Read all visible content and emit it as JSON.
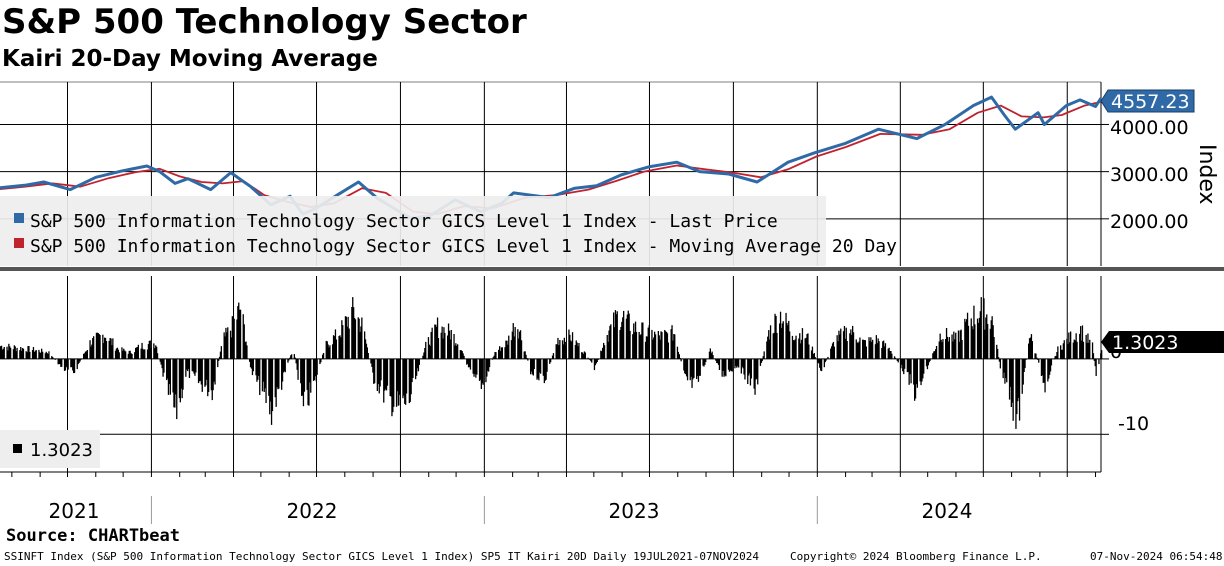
{
  "header": {
    "title": "S&P 500 Technology Sector",
    "subtitle": "Kairi 20-Day Moving Average"
  },
  "footer": {
    "source": "Source: CHARTbeat",
    "description": "SSINFT Index (S&P 500 Information Technology Sector GICS Level 1 Index) SP5 IT Kairi 20D  Daily 19JUL2021-07NOV2024",
    "copyright": "Copyright© 2024 Bloomberg Finance L.P.",
    "timestamp": "07-Nov-2024 06:54:48"
  },
  "colors": {
    "last_price": "#2f6aa6",
    "moving_average": "#c0222e",
    "kairi": "#000000",
    "legend_bg": "#eeeeee"
  },
  "chart_data": [
    {
      "type": "line",
      "ylabel": "Index",
      "ylim": [
        1000,
        4900
      ],
      "yticks": [
        {
          "value": 2000,
          "label": "2000.00"
        },
        {
          "value": 3000,
          "label": "3000.00"
        },
        {
          "value": 4000,
          "label": "4000.00"
        }
      ],
      "xlabels": [
        "2021",
        "2022",
        "2023",
        "2024"
      ],
      "xlim": [
        "2021-07-19",
        "2024-11-07"
      ],
      "grid": true,
      "legend": "bottom-left",
      "last_value_label": "4557.23",
      "series": [
        {
          "name": "S&P 500 Information Technology Sector GICS Level 1 Index - Last Price",
          "color": "#2f6aa6",
          "points": [
            [
              "2021-07-19",
              2660
            ],
            [
              "2021-08-15",
              2710
            ],
            [
              "2021-09-05",
              2780
            ],
            [
              "2021-10-04",
              2620
            ],
            [
              "2021-11-01",
              2880
            ],
            [
              "2021-12-01",
              3020
            ],
            [
              "2021-12-27",
              3120
            ],
            [
              "2022-01-10",
              3000
            ],
            [
              "2022-01-27",
              2750
            ],
            [
              "2022-02-10",
              2850
            ],
            [
              "2022-03-07",
              2620
            ],
            [
              "2022-03-29",
              2980
            ],
            [
              "2022-04-20",
              2680
            ],
            [
              "2022-05-12",
              2300
            ],
            [
              "2022-06-02",
              2480
            ],
            [
              "2022-06-16",
              2100
            ],
            [
              "2022-07-01",
              2230
            ],
            [
              "2022-07-25",
              2520
            ],
            [
              "2022-08-16",
              2780
            ],
            [
              "2022-09-06",
              2430
            ],
            [
              "2022-09-30",
              2150
            ],
            [
              "2022-10-13",
              2010
            ],
            [
              "2022-11-03",
              2070
            ],
            [
              "2022-11-30",
              2400
            ],
            [
              "2022-12-28",
              2150
            ],
            [
              "2023-01-20",
              2330
            ],
            [
              "2023-02-02",
              2550
            ],
            [
              "2023-03-13",
              2450
            ],
            [
              "2023-04-10",
              2650
            ],
            [
              "2023-05-04",
              2700
            ],
            [
              "2023-05-31",
              2930
            ],
            [
              "2023-06-30",
              3100
            ],
            [
              "2023-07-31",
              3200
            ],
            [
              "2023-08-25",
              3000
            ],
            [
              "2023-09-26",
              2950
            ],
            [
              "2023-10-27",
              2780
            ],
            [
              "2023-11-30",
              3200
            ],
            [
              "2023-12-29",
              3400
            ],
            [
              "2024-02-01",
              3600
            ],
            [
              "2024-03-08",
              3900
            ],
            [
              "2024-04-19",
              3700
            ],
            [
              "2024-05-20",
              4000
            ],
            [
              "2024-06-20",
              4400
            ],
            [
              "2024-07-10",
              4580
            ],
            [
              "2024-07-24",
              4200
            ],
            [
              "2024-08-05",
              3900
            ],
            [
              "2024-08-30",
              4250
            ],
            [
              "2024-09-06",
              4000
            ],
            [
              "2024-09-30",
              4400
            ],
            [
              "2024-10-15",
              4520
            ],
            [
              "2024-11-01",
              4380
            ],
            [
              "2024-11-07",
              4557
            ]
          ]
        },
        {
          "name": "S&P 500 Information Technology Sector GICS Level 1 Index - Moving Average 20 Day",
          "color": "#c0222e",
          "points": [
            [
              "2021-07-19",
              2630
            ],
            [
              "2021-08-15",
              2680
            ],
            [
              "2021-09-15",
              2750
            ],
            [
              "2021-10-15",
              2680
            ],
            [
              "2021-11-15",
              2860
            ],
            [
              "2021-12-15",
              2990
            ],
            [
              "2022-01-10",
              3060
            ],
            [
              "2022-02-01",
              2900
            ],
            [
              "2022-02-25",
              2780
            ],
            [
              "2022-03-20",
              2750
            ],
            [
              "2022-04-12",
              2800
            ],
            [
              "2022-05-05",
              2500
            ],
            [
              "2022-06-01",
              2350
            ],
            [
              "2022-06-25",
              2250
            ],
            [
              "2022-07-20",
              2330
            ],
            [
              "2022-08-20",
              2650
            ],
            [
              "2022-09-15",
              2550
            ],
            [
              "2022-10-15",
              2150
            ],
            [
              "2022-11-10",
              2100
            ],
            [
              "2022-12-10",
              2270
            ],
            [
              "2023-01-10",
              2220
            ],
            [
              "2023-02-15",
              2450
            ],
            [
              "2023-03-20",
              2500
            ],
            [
              "2023-04-25",
              2620
            ],
            [
              "2023-05-25",
              2800
            ],
            [
              "2023-06-25",
              3000
            ],
            [
              "2023-07-31",
              3130
            ],
            [
              "2023-08-31",
              3050
            ],
            [
              "2023-09-30",
              2980
            ],
            [
              "2023-10-31",
              2880
            ],
            [
              "2023-11-30",
              3050
            ],
            [
              "2023-12-31",
              3320
            ],
            [
              "2024-02-01",
              3520
            ],
            [
              "2024-03-10",
              3800
            ],
            [
              "2024-04-25",
              3780
            ],
            [
              "2024-05-25",
              3900
            ],
            [
              "2024-06-25",
              4250
            ],
            [
              "2024-07-20",
              4400
            ],
            [
              "2024-08-12",
              4170
            ],
            [
              "2024-09-05",
              4150
            ],
            [
              "2024-09-25",
              4200
            ],
            [
              "2024-10-20",
              4400
            ],
            [
              "2024-11-07",
              4480
            ]
          ]
        }
      ]
    },
    {
      "type": "bar",
      "ylim": [
        -15,
        11
      ],
      "yticks": [
        {
          "value": 0,
          "label": "0"
        },
        {
          "value": -10,
          "label": "-10"
        }
      ],
      "xlim": [
        "2021-07-19",
        "2024-11-07"
      ],
      "grid": true,
      "legend": "bottom-left",
      "last_value_label": "1.3023",
      "legend_label": "1.3023",
      "series": [
        {
          "name": "1.3023",
          "color": "#000000",
          "points": [
            [
              "2021-07-19",
              2.0
            ],
            [
              "2021-08-01",
              1.8
            ],
            [
              "2021-08-20",
              1.5
            ],
            [
              "2021-09-10",
              1.0
            ],
            [
              "2021-09-25",
              -1.5
            ],
            [
              "2021-10-08",
              -2.0
            ],
            [
              "2021-10-25",
              2.5
            ],
            [
              "2021-11-10",
              3.8
            ],
            [
              "2021-11-25",
              1.5
            ],
            [
              "2021-12-08",
              1.0
            ],
            [
              "2021-12-20",
              2.0
            ],
            [
              "2022-01-05",
              2.5
            ],
            [
              "2022-01-15",
              -3.5
            ],
            [
              "2022-01-27",
              -8.5
            ],
            [
              "2022-02-08",
              -2.0
            ],
            [
              "2022-02-25",
              -4.0
            ],
            [
              "2022-03-08",
              -5.0
            ],
            [
              "2022-03-20",
              3.0
            ],
            [
              "2022-03-30",
              5.0
            ],
            [
              "2022-04-08",
              8.0
            ],
            [
              "2022-04-20",
              -2.0
            ],
            [
              "2022-05-02",
              -5.0
            ],
            [
              "2022-05-12",
              -8.0
            ],
            [
              "2022-05-25",
              -3.0
            ],
            [
              "2022-06-05",
              2.0
            ],
            [
              "2022-06-16",
              -8.0
            ],
            [
              "2022-06-30",
              -3.0
            ],
            [
              "2022-07-10",
              2.0
            ],
            [
              "2022-07-25",
              4.0
            ],
            [
              "2022-08-10",
              7.5
            ],
            [
              "2022-08-20",
              5.0
            ],
            [
              "2022-09-01",
              -3.0
            ],
            [
              "2022-09-15",
              -6.0
            ],
            [
              "2022-09-28",
              -7.5
            ],
            [
              "2022-10-10",
              -6.5
            ],
            [
              "2022-10-28",
              2.0
            ],
            [
              "2022-11-10",
              5.0
            ],
            [
              "2022-11-25",
              4.0
            ],
            [
              "2022-12-05",
              2.0
            ],
            [
              "2022-12-18",
              -3.0
            ],
            [
              "2022-12-30",
              -4.0
            ],
            [
              "2023-01-12",
              1.0
            ],
            [
              "2023-01-25",
              2.5
            ],
            [
              "2023-02-05",
              6.0
            ],
            [
              "2023-02-20",
              -2.0
            ],
            [
              "2023-03-08",
              -3.0
            ],
            [
              "2023-03-22",
              3.0
            ],
            [
              "2023-04-05",
              3.5
            ],
            [
              "2023-04-20",
              1.0
            ],
            [
              "2023-05-02",
              -1.5
            ],
            [
              "2023-05-12",
              3.0
            ],
            [
              "2023-05-28",
              7.0
            ],
            [
              "2023-06-12",
              5.0
            ],
            [
              "2023-06-28",
              4.0
            ],
            [
              "2023-07-12",
              3.5
            ],
            [
              "2023-07-28",
              4.0
            ],
            [
              "2023-08-08",
              -3.0
            ],
            [
              "2023-08-20",
              -4.5
            ],
            [
              "2023-09-05",
              1.5
            ],
            [
              "2023-09-18",
              -2.5
            ],
            [
              "2023-10-05",
              -1.0
            ],
            [
              "2023-10-25",
              -4.5
            ],
            [
              "2023-11-08",
              4.0
            ],
            [
              "2023-11-20",
              7.0
            ],
            [
              "2023-12-05",
              4.0
            ],
            [
              "2023-12-20",
              3.5
            ],
            [
              "2024-01-05",
              -2.0
            ],
            [
              "2024-01-20",
              3.0
            ],
            [
              "2024-02-05",
              4.5
            ],
            [
              "2024-02-20",
              2.5
            ],
            [
              "2024-03-05",
              3.0
            ],
            [
              "2024-03-20",
              1.5
            ],
            [
              "2024-04-05",
              -2.0
            ],
            [
              "2024-04-18",
              -5.5
            ],
            [
              "2024-05-01",
              -1.0
            ],
            [
              "2024-05-15",
              4.0
            ],
            [
              "2024-06-01",
              3.0
            ],
            [
              "2024-06-15",
              6.0
            ],
            [
              "2024-06-28",
              7.5
            ],
            [
              "2024-07-10",
              6.0
            ],
            [
              "2024-07-20",
              -2.0
            ],
            [
              "2024-07-30",
              -6.0
            ],
            [
              "2024-08-07",
              -9.5
            ],
            [
              "2024-08-20",
              4.0
            ],
            [
              "2024-09-06",
              -4.0
            ],
            [
              "2024-09-20",
              1.5
            ],
            [
              "2024-10-01",
              3.0
            ],
            [
              "2024-10-15",
              4.5
            ],
            [
              "2024-10-28",
              2.0
            ],
            [
              "2024-11-01",
              -2.5
            ],
            [
              "2024-11-07",
              1.3
            ]
          ]
        }
      ]
    }
  ]
}
